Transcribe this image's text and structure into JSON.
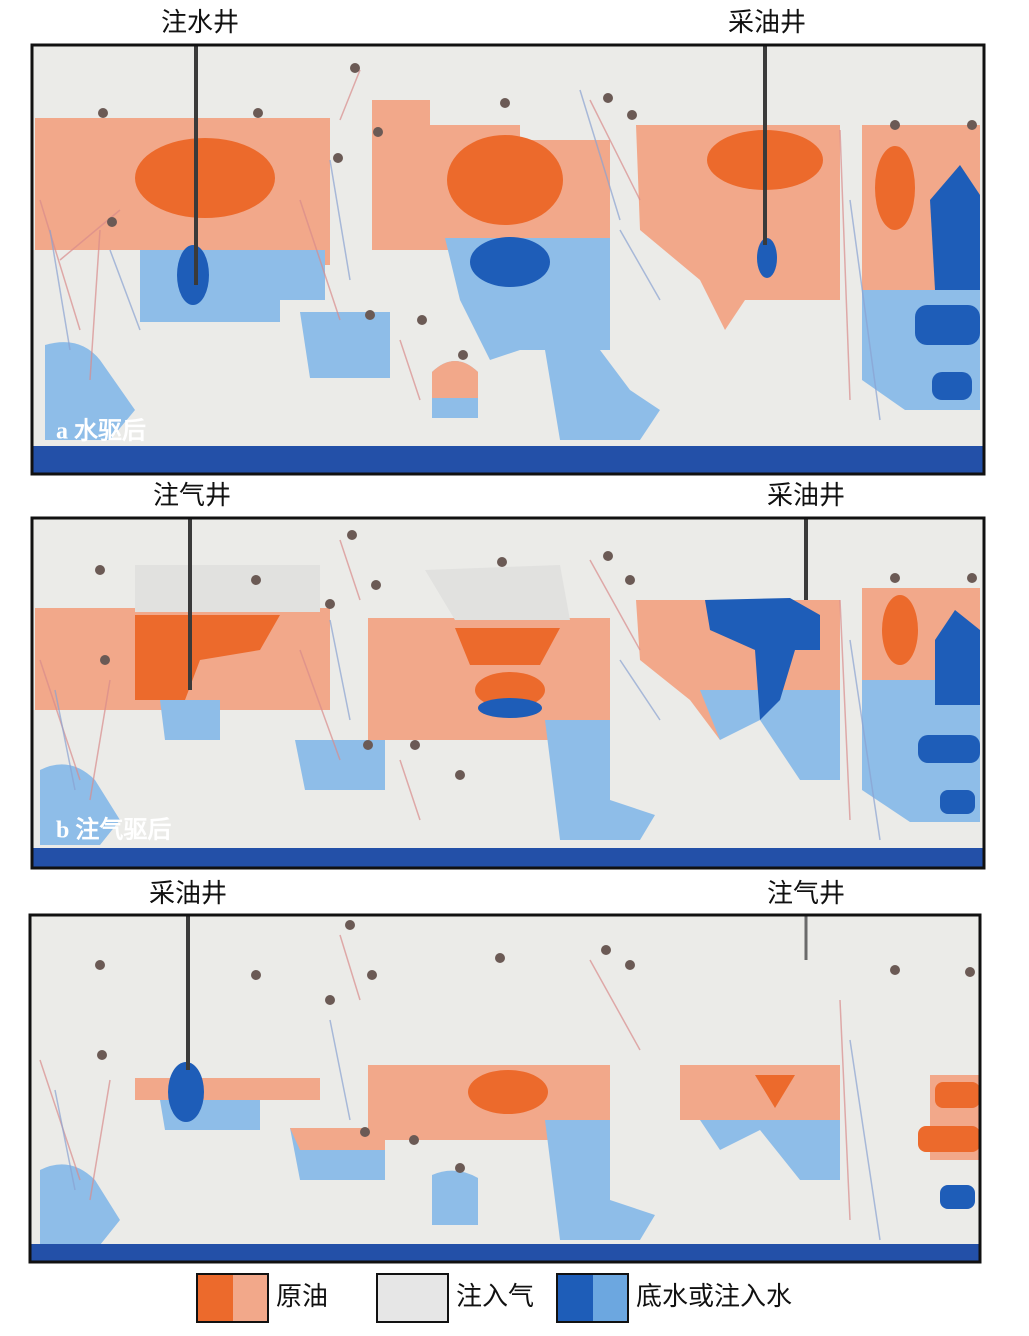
{
  "panels": [
    {
      "wells": [
        {
          "label": "注水井"
        },
        {
          "label": "采油井"
        }
      ],
      "caption": "a 水驱后"
    },
    {
      "wells": [
        {
          "label": "注气井"
        },
        {
          "label": "采油井"
        }
      ],
      "caption": "b 注气驱后"
    },
    {
      "wells": [
        {
          "label": "采油井"
        },
        {
          "label": "注气井"
        }
      ]
    }
  ],
  "legend": [
    {
      "label": "原油"
    },
    {
      "label": "注入气"
    },
    {
      "label": "底水或注入水"
    }
  ]
}
